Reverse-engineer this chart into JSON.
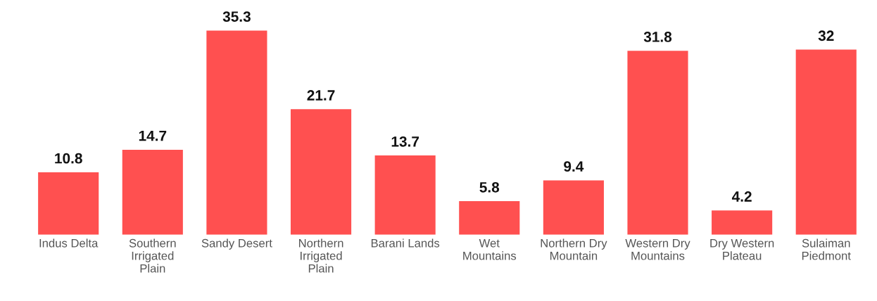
{
  "chart_data": {
    "type": "bar",
    "categories": [
      "Indus Delta",
      "Southern Irrigated Plain",
      "Sandy Desert",
      "Northern Irrigated Plain",
      "Barani Lands",
      "Wet Mountains",
      "Northern Dry Mountain",
      "Western Dry Mountains",
      "Dry Western Plateau",
      "Sulaiman Piedmont"
    ],
    "values": [
      10.8,
      14.7,
      35.3,
      21.7,
      13.7,
      5.8,
      9.4,
      31.8,
      4.2,
      32
    ],
    "color": "#ff5050",
    "data_labels": true,
    "grid": false,
    "legend": false
  }
}
